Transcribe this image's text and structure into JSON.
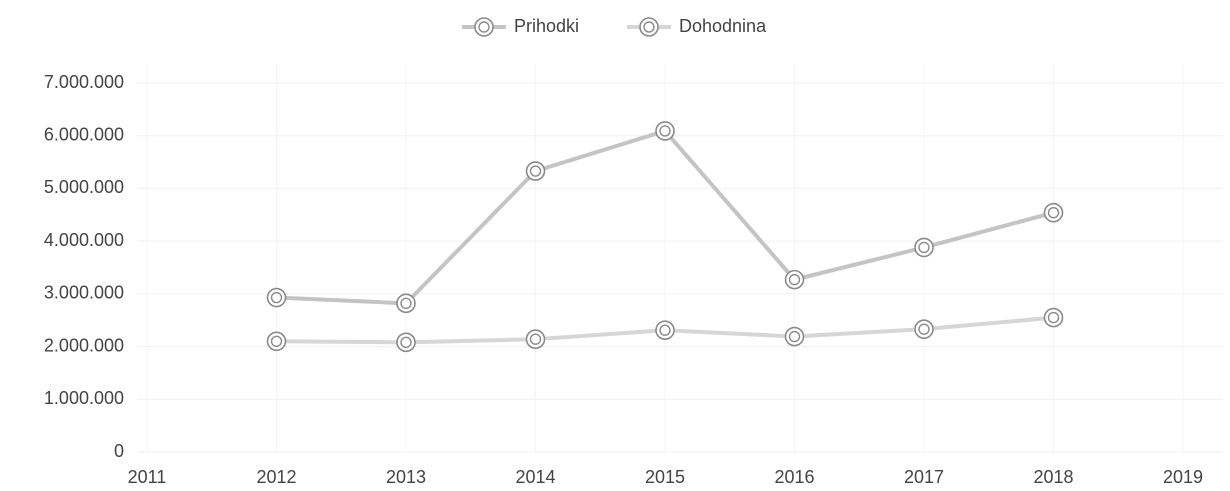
{
  "chart_data": {
    "type": "line",
    "x": [
      2012,
      2013,
      2014,
      2015,
      2016,
      2017,
      2018
    ],
    "series": [
      {
        "name": "Prihodki",
        "color": "#c4c4c4",
        "values": [
          2930000,
          2820000,
          5330000,
          6090000,
          3270000,
          3880000,
          4540000
        ]
      },
      {
        "name": "Dohodnina",
        "color": "#d6d6d6",
        "values": [
          2100000,
          2080000,
          2140000,
          2310000,
          2190000,
          2330000,
          2550000
        ]
      }
    ],
    "xlim": [
      2011,
      2019
    ],
    "xticks": [
      2011,
      2012,
      2013,
      2014,
      2015,
      2016,
      2017,
      2018,
      2019
    ],
    "ylim": [
      0,
      7000000
    ],
    "yticks": [
      0,
      {
        "value": 1000000,
        "label": "1.000.000"
      },
      {
        "value": 2000000,
        "label": "2.000.000"
      },
      {
        "value": 3000000,
        "label": "3.000.000"
      },
      {
        "value": 4000000,
        "label": "4.000.000"
      },
      {
        "value": 5000000,
        "label": "5.000.000"
      },
      {
        "value": 6000000,
        "label": "6.000.000"
      },
      {
        "value": 7000000,
        "label": "7.000.000"
      }
    ],
    "grid": true,
    "legend": "top"
  }
}
